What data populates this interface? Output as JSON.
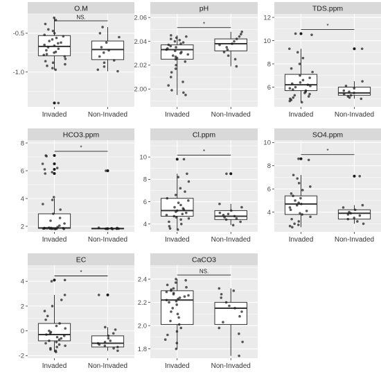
{
  "colors": {
    "panel_bg": "#ebebeb",
    "grid_major": "#ffffff",
    "strip_bg": "#d9d9d9",
    "box_fill": "#ffffff",
    "box_line": "#333333",
    "point": "#1a1a1a"
  },
  "chart_data": [
    {
      "type": "box",
      "title": "O.M",
      "categories": [
        "Invaded",
        "Non-Invaded"
      ],
      "ylim": [
        -1.45,
        -0.25
      ],
      "yticks": [
        -1.0,
        -0.5
      ],
      "ytick_labels": [
        "-1.0",
        "-0.5"
      ],
      "significance": "NS.",
      "boxes": [
        {
          "whisker_low": -0.97,
          "q1": -0.79,
          "median": -0.67,
          "q3": -0.53,
          "whisker_high": -0.3,
          "outliers": [
            -1.4
          ]
        },
        {
          "whisker_low": -0.99,
          "q1": -0.84,
          "median": -0.71,
          "q3": -0.6,
          "whisker_high": -0.42,
          "outliers": []
        }
      ],
      "points": [
        [
          -0.3,
          -0.33,
          -0.38,
          -0.45,
          -0.47,
          -0.5,
          -0.52,
          -0.54,
          -0.56,
          -0.58,
          -0.6,
          -0.62,
          -0.63,
          -0.65,
          -0.66,
          -0.68,
          -0.7,
          -0.72,
          -0.74,
          -0.75,
          -0.77,
          -0.78,
          -0.8,
          -0.83,
          -0.86,
          -0.88,
          -0.9,
          -0.92,
          -0.95,
          -0.97,
          -1.4
        ],
        [
          -0.42,
          -0.5,
          -0.55,
          -0.62,
          -0.68,
          -0.72,
          -0.75,
          -0.8,
          -0.85,
          -0.88,
          -0.93,
          -0.97,
          -0.99
        ]
      ]
    },
    {
      "type": "box",
      "title": "pH",
      "categories": [
        "Invaded",
        "Non-Invaded"
      ],
      "ylim": [
        1.985,
        2.063
      ],
      "yticks": [
        2.0,
        2.02,
        2.04,
        2.06
      ],
      "ytick_labels": [
        "2.00",
        "2.02",
        "2.04",
        "2.06"
      ],
      "significance": "*",
      "boxes": [
        {
          "whisker_low": 1.995,
          "q1": 2.025,
          "median": 2.033,
          "q3": 2.037,
          "whisker_high": 2.045,
          "outliers": []
        },
        {
          "whisker_low": 2.019,
          "q1": 2.032,
          "median": 2.038,
          "q3": 2.042,
          "whisker_high": 2.048,
          "outliers": []
        }
      ],
      "points": [
        [
          2.045,
          2.044,
          2.043,
          2.042,
          2.041,
          2.04,
          2.039,
          2.038,
          2.037,
          2.036,
          2.035,
          2.034,
          2.033,
          2.032,
          2.031,
          2.03,
          2.029,
          2.028,
          2.027,
          2.026,
          2.025,
          2.023,
          2.02,
          2.017,
          2.014,
          2.01,
          2.006,
          2.003,
          1.999,
          1.997,
          1.995
        ],
        [
          2.048,
          2.046,
          2.044,
          2.042,
          2.04,
          2.038,
          2.037,
          2.035,
          2.033,
          2.031,
          2.028,
          2.025,
          2.019
        ]
      ]
    },
    {
      "type": "box",
      "title": "TDS.ppm",
      "categories": [
        "Invaded",
        "Non-Invaded"
      ],
      "ylim": [
        4.3,
        12.3
      ],
      "yticks": [
        6,
        8,
        10,
        12
      ],
      "ytick_labels": [
        "6",
        "8",
        "10",
        "12"
      ],
      "significance": "*",
      "boxes": [
        {
          "whisker_low": 4.7,
          "q1": 5.7,
          "median": 6.2,
          "q3": 7.1,
          "whisker_high": 9.3,
          "outliers": [
            10.6
          ]
        },
        {
          "whisker_low": 5.0,
          "q1": 5.3,
          "median": 5.5,
          "q3": 6.0,
          "whisker_high": 6.5,
          "outliers": [
            9.3
          ]
        }
      ],
      "points": [
        [
          10.6,
          10.5,
          9.3,
          9.0,
          8.5,
          8.0,
          7.6,
          7.3,
          7.0,
          6.8,
          6.6,
          6.4,
          6.3,
          6.2,
          6.1,
          6.0,
          5.9,
          5.8,
          5.7,
          5.6,
          5.5,
          5.4,
          5.3,
          5.2,
          5.1,
          5.0,
          4.9,
          4.8,
          4.7
        ],
        [
          9.3,
          6.5,
          6.1,
          5.9,
          5.7,
          5.6,
          5.5,
          5.4,
          5.3,
          5.2,
          5.1,
          5.0
        ]
      ]
    },
    {
      "type": "box",
      "title": "HCO3.ppm",
      "categories": [
        "Invaded",
        "Non-Invaded"
      ],
      "ylim": [
        1.6,
        8.2
      ],
      "yticks": [
        2,
        4,
        6,
        8
      ],
      "ytick_labels": [
        "2",
        "4",
        "6",
        "8"
      ],
      "significance": "*",
      "boxes": [
        {
          "whisker_low": 1.8,
          "q1": 1.85,
          "median": 1.88,
          "q3": 2.9,
          "whisker_high": 4.0,
          "outliers": [
            5.8,
            6.1,
            6.5,
            7.1
          ]
        },
        {
          "whisker_low": 1.8,
          "q1": 1.82,
          "median": 1.84,
          "q3": 1.86,
          "whisker_high": 1.9,
          "outliers": [
            6.0
          ]
        }
      ],
      "points": [
        [
          7.1,
          7.05,
          6.5,
          6.2,
          6.1,
          5.9,
          5.8,
          4.1,
          3.9,
          3.6,
          3.2,
          2.9,
          2.6,
          2.4,
          2.2,
          2.05,
          1.95,
          1.9,
          1.88,
          1.87,
          1.86,
          1.86,
          1.85,
          1.85,
          1.84,
          1.84,
          1.83,
          1.83,
          1.82,
          1.82,
          1.81,
          1.8
        ],
        [
          6.0,
          1.9,
          1.88,
          1.86,
          1.85,
          1.84,
          1.84,
          1.83,
          1.83,
          1.82,
          1.82,
          1.81,
          1.8
        ]
      ]
    },
    {
      "type": "box",
      "title": "Cl.ppm",
      "categories": [
        "Invaded",
        "Non-Invaded"
      ],
      "ylim": [
        3.3,
        11.5
      ],
      "yticks": [
        4,
        6,
        8,
        10
      ],
      "ytick_labels": [
        "4",
        "6",
        "8",
        "10"
      ],
      "significance": "*",
      "boxes": [
        {
          "whisker_low": 3.5,
          "q1": 4.7,
          "median": 5.2,
          "q3": 6.3,
          "whisker_high": 8.5,
          "outliers": [
            9.8
          ]
        },
        {
          "whisker_low": 3.9,
          "q1": 4.4,
          "median": 4.7,
          "q3": 5.2,
          "whisker_high": 5.8,
          "outliers": [
            8.5
          ]
        }
      ],
      "points": [
        [
          9.8,
          8.5,
          8.2,
          7.8,
          7.2,
          6.9,
          6.6,
          6.3,
          6.1,
          5.9,
          5.7,
          5.5,
          5.4,
          5.3,
          5.2,
          5.1,
          5.0,
          4.9,
          4.8,
          4.7,
          4.6,
          4.5,
          4.4,
          4.2,
          4.0,
          3.8,
          3.6,
          3.5
        ],
        [
          8.5,
          5.8,
          5.5,
          5.2,
          5.0,
          4.9,
          4.8,
          4.7,
          4.6,
          4.5,
          4.4,
          4.2,
          3.9
        ]
      ]
    },
    {
      "type": "box",
      "title": "SO4.ppm",
      "categories": [
        "Invaded",
        "Non-Invaded"
      ],
      "ylim": [
        2.3,
        10.2
      ],
      "yticks": [
        4,
        6,
        8,
        10
      ],
      "ytick_labels": [
        "4",
        "6",
        "8",
        "10"
      ],
      "significance": "*",
      "boxes": [
        {
          "whisker_low": 2.7,
          "q1": 3.8,
          "median": 4.7,
          "q3": 5.4,
          "whisker_high": 7.2,
          "outliers": [
            8.6
          ]
        },
        {
          "whisker_low": 3.0,
          "q1": 3.4,
          "median": 3.9,
          "q3": 4.2,
          "whisker_high": 4.6,
          "outliers": [
            7.1
          ]
        }
      ],
      "points": [
        [
          8.6,
          8.5,
          7.2,
          6.9,
          6.5,
          6.2,
          5.9,
          5.6,
          5.4,
          5.2,
          5.0,
          4.8,
          4.7,
          4.6,
          4.4,
          4.2,
          4.1,
          3.9,
          3.8,
          3.6,
          3.4,
          3.2,
          3.0,
          2.9,
          2.8,
          2.7
        ],
        [
          7.1,
          4.6,
          4.4,
          4.2,
          4.0,
          3.9,
          3.8,
          3.7,
          3.5,
          3.4,
          3.2,
          3.0
        ]
      ]
    },
    {
      "type": "box",
      "title": "EC",
      "categories": [
        "Invaded",
        "Non-Invaded"
      ],
      "ylim": [
        -2.2,
        5.3
      ],
      "yticks": [
        -2,
        0,
        2,
        4
      ],
      "ytick_labels": [
        "-2",
        "0",
        "2",
        "4"
      ],
      "significance": "*",
      "boxes": [
        {
          "whisker_low": -1.7,
          "q1": -0.8,
          "median": -0.3,
          "q3": 0.6,
          "whisker_high": 2.9,
          "outliers": [
            4.1
          ]
        },
        {
          "whisker_low": -1.6,
          "q1": -1.3,
          "median": -1.0,
          "q3": -0.4,
          "whisker_high": 0.3,
          "outliers": [
            2.9
          ]
        }
      ],
      "points": [
        [
          4.1,
          4.0,
          2.9,
          2.5,
          2.0,
          1.6,
          1.2,
          0.9,
          0.6,
          0.4,
          0.2,
          0.0,
          -0.1,
          -0.2,
          -0.3,
          -0.4,
          -0.5,
          -0.6,
          -0.7,
          -0.8,
          -0.9,
          -1.0,
          -1.1,
          -1.2,
          -1.3,
          -1.4,
          -1.5,
          -1.6,
          -1.7
        ],
        [
          2.9,
          0.3,
          0.1,
          -0.2,
          -0.4,
          -0.6,
          -0.8,
          -0.9,
          -1.0,
          -1.1,
          -1.2,
          -1.3,
          -1.4,
          -1.6
        ]
      ]
    },
    {
      "type": "box",
      "title": "CaCO3",
      "categories": [
        "Invaded",
        "Non-Invaded"
      ],
      "ylim": [
        1.72,
        2.52
      ],
      "yticks": [
        1.8,
        2.0,
        2.2,
        2.4
      ],
      "ytick_labels": [
        "1.8",
        "2.0",
        "2.2",
        "2.4"
      ],
      "significance": "NS.",
      "boxes": [
        {
          "whisker_low": 1.8,
          "q1": 2.01,
          "median": 2.22,
          "q3": 2.3,
          "whisker_high": 2.4,
          "outliers": []
        },
        {
          "whisker_low": 1.74,
          "q1": 2.01,
          "median": 2.15,
          "q3": 2.2,
          "whisker_high": 2.32,
          "outliers": []
        }
      ],
      "points": [
        [
          2.4,
          2.39,
          2.37,
          2.35,
          2.33,
          2.32,
          2.31,
          2.3,
          2.29,
          2.28,
          2.27,
          2.26,
          2.25,
          2.24,
          2.23,
          2.22,
          2.21,
          2.2,
          2.18,
          2.15,
          2.12,
          2.1,
          2.07,
          2.04,
          2.01,
          1.98,
          1.95,
          1.92,
          1.88,
          1.85,
          1.8
        ],
        [
          2.32,
          2.3,
          2.27,
          2.24,
          2.2,
          2.17,
          2.15,
          2.12,
          2.08,
          2.03,
          1.98,
          1.93,
          1.86,
          1.74
        ]
      ]
    }
  ]
}
